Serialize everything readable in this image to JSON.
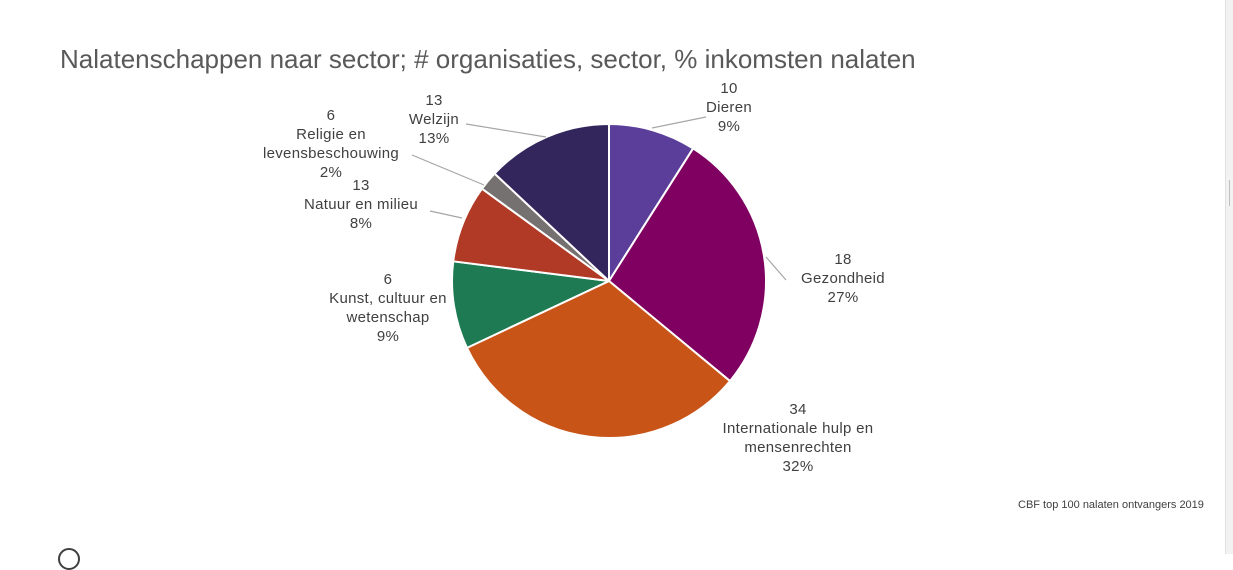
{
  "title": "Nalatenschappen naar sector; # organisaties, sector, % inkomsten nalaten",
  "source": "CBF top 100 nalaten ontvangers 2019",
  "chart_data": {
    "type": "pie",
    "title": "Nalatenschappen naar sector; # organisaties, sector, % inkomsten nalaten",
    "start": "12 o'clock",
    "direction": "clockwise",
    "slices": [
      {
        "label": "Dieren",
        "label_lines": [
          "10",
          "Dieren",
          "9%"
        ],
        "organisaties": 10,
        "percent": 9,
        "color": "#5b3e99"
      },
      {
        "label": "Gezondheid",
        "label_lines": [
          "18",
          "Gezondheid",
          "27%"
        ],
        "organisaties": 18,
        "percent": 27,
        "color": "#7f0060"
      },
      {
        "label": "Internationale hulp en mensenrechten",
        "label_lines": [
          "34",
          "Internationale hulp en",
          "mensenrechten",
          "32%"
        ],
        "organisaties": 34,
        "percent": 32,
        "color": "#c85418"
      },
      {
        "label": "Kunst, cultuur en wetenschap",
        "label_lines": [
          "6",
          "Kunst, cultuur en",
          "wetenschap",
          "9%"
        ],
        "organisaties": 6,
        "percent": 9,
        "color": "#1e7a52"
      },
      {
        "label": "Natuur en milieu",
        "label_lines": [
          "13",
          "Natuur en milieu",
          "8%"
        ],
        "organisaties": 13,
        "percent": 8,
        "color": "#b03a26"
      },
      {
        "label": "Religie en levensbeschouwing",
        "label_lines": [
          "6",
          "Religie en",
          "levensbeschouwing",
          "2%"
        ],
        "organisaties": 6,
        "percent": 2,
        "color": "#767171"
      },
      {
        "label": "Welzijn",
        "label_lines": [
          "13",
          "Welzijn",
          "13%"
        ],
        "organisaties": 13,
        "percent": 13,
        "color": "#33265c"
      }
    ]
  }
}
